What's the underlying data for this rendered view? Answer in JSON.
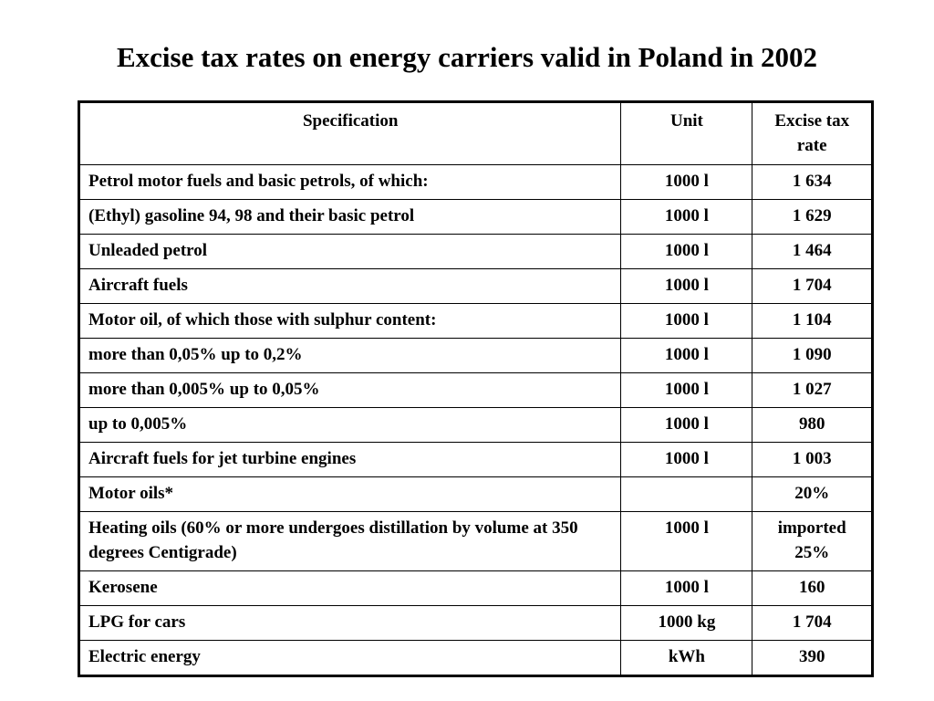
{
  "title": "Excise tax rates on energy carriers valid in Poland in 2002",
  "table": {
    "headers": {
      "specification": "Specification",
      "unit": "Unit",
      "rate": "Excise tax rate"
    },
    "rows": [
      {
        "specification": "Petrol motor fuels and basic petrols, of which:",
        "unit": "1000 l",
        "rate": "1 634"
      },
      {
        "specification": "(Ethyl) gasoline 94, 98 and their basic petrol",
        "unit": "1000 l",
        "rate": "1 629"
      },
      {
        "specification": "Unleaded petrol",
        "unit": "1000 l",
        "rate": "1 464"
      },
      {
        "specification": "Aircraft fuels",
        "unit": "1000 l",
        "rate": "1 704"
      },
      {
        "specification": "Motor oil, of which those with sulphur content:",
        "unit": "1000 l",
        "rate": "1 104"
      },
      {
        "specification": "more than 0,05% up to 0,2%",
        "unit": "1000 l",
        "rate": "1 090"
      },
      {
        "specification": "more than 0,005% up to 0,05%",
        "unit": "1000 l",
        "rate": "1 027"
      },
      {
        "specification": "up to 0,005%",
        "unit": "1000 l",
        "rate": "980"
      },
      {
        "specification": "Aircraft fuels for jet turbine engines",
        "unit": "1000 l",
        "rate": "1 003"
      },
      {
        "specification": "Motor oils*",
        "unit": "",
        "rate": "20%"
      },
      {
        "specification": "Heating oils (60% or more undergoes distillation by volume at 350 degrees Centigrade)",
        "unit": "1000 l",
        "rate": "imported 25%"
      },
      {
        "specification": "Kerosene",
        "unit": "1000 l",
        "rate": "160"
      },
      {
        "specification": "LPG for cars",
        "unit": "1000 kg",
        "rate": "1 704"
      },
      {
        "specification": "Electric energy",
        "unit": "kWh",
        "rate": "390"
      }
    ]
  }
}
